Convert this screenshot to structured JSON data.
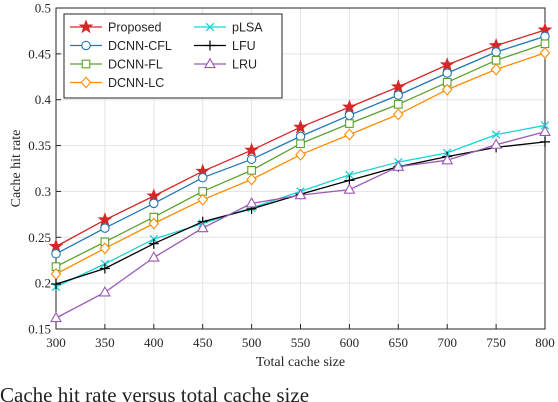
{
  "chart_data": {
    "type": "line",
    "title": "",
    "xlabel": "Total cache size",
    "ylabel": "Cache hit rate",
    "xlim": [
      300,
      800
    ],
    "ylim": [
      0.15,
      0.5
    ],
    "xticks": [
      "300",
      "350",
      "400",
      "450",
      "500",
      "550",
      "600",
      "650",
      "700",
      "750",
      "800"
    ],
    "yticks": [
      "0.15",
      "0.2",
      "0.25",
      "0.3",
      "0.35",
      "0.4",
      "0.45",
      "0.5"
    ],
    "grid": true,
    "legend_position": "top-left",
    "x": [
      300,
      350,
      400,
      450,
      500,
      550,
      600,
      650,
      700,
      750,
      800
    ],
    "series": [
      {
        "name": "Proposed",
        "color": "#d62728",
        "marker": "star",
        "values": [
          0.24,
          0.269,
          0.295,
          0.322,
          0.345,
          0.37,
          0.392,
          0.414,
          0.438,
          0.459,
          0.476
        ]
      },
      {
        "name": "DCNN-CFL",
        "color": "#1f77b4",
        "marker": "circle",
        "values": [
          0.232,
          0.26,
          0.287,
          0.315,
          0.335,
          0.36,
          0.383,
          0.405,
          0.429,
          0.452,
          0.469
        ]
      },
      {
        "name": "DCNN-FL",
        "color": "#5aa02c",
        "marker": "square",
        "values": [
          0.218,
          0.245,
          0.272,
          0.3,
          0.323,
          0.352,
          0.374,
          0.395,
          0.419,
          0.443,
          0.461
        ]
      },
      {
        "name": "DCNN-LC",
        "color": "#ff8c00",
        "marker": "diamond",
        "values": [
          0.21,
          0.238,
          0.265,
          0.291,
          0.313,
          0.34,
          0.362,
          0.384,
          0.411,
          0.433,
          0.451
        ]
      },
      {
        "name": "pLSA",
        "color": "#17d4d4",
        "marker": "x",
        "values": [
          0.196,
          0.221,
          0.248,
          0.265,
          0.282,
          0.3,
          0.318,
          0.332,
          0.342,
          0.362,
          0.372
        ]
      },
      {
        "name": "LFU",
        "color": "#000000",
        "marker": "plus",
        "values": [
          0.199,
          0.216,
          0.243,
          0.267,
          0.281,
          0.297,
          0.312,
          0.327,
          0.338,
          0.348,
          0.354
        ]
      },
      {
        "name": "LRU",
        "color": "#9b59b6",
        "marker": "triangle",
        "values": [
          0.162,
          0.19,
          0.228,
          0.26,
          0.287,
          0.296,
          0.302,
          0.327,
          0.334,
          0.351,
          0.365
        ]
      }
    ]
  },
  "caption_fragment": "Cache hit rate versus total cache size"
}
